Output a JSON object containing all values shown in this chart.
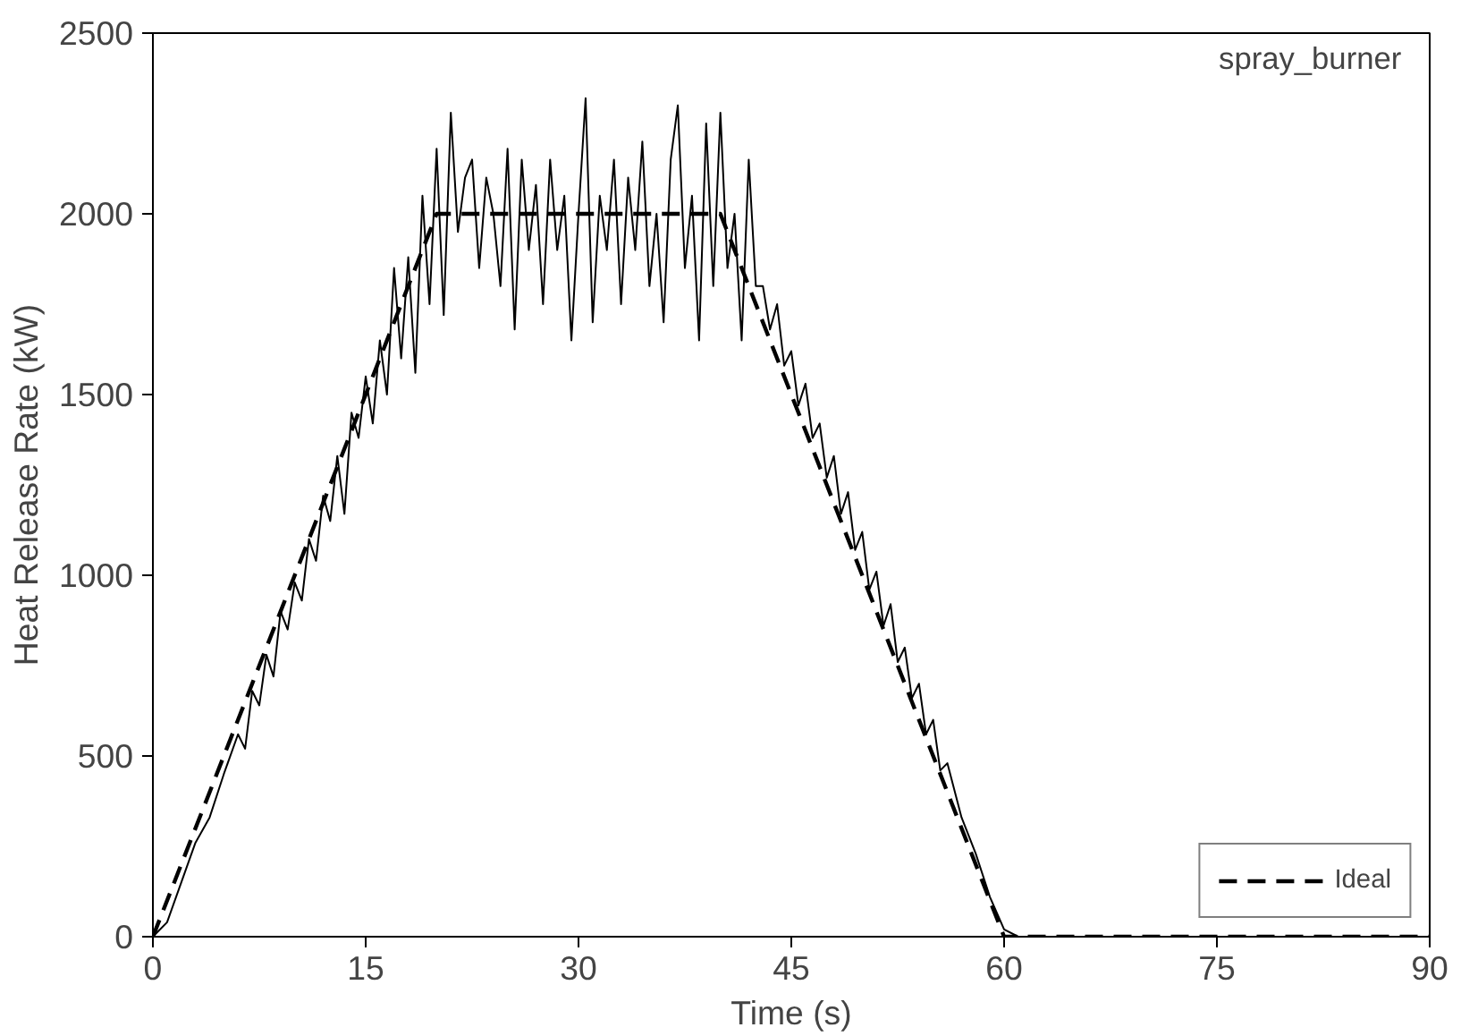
{
  "chart_data": {
    "type": "line",
    "xlabel": "Time (s)",
    "ylabel": "Heat Release Rate (kW)",
    "annotations": [
      "spray_burner"
    ],
    "xlim": [
      0,
      90
    ],
    "xticks": [
      0,
      15,
      30,
      45,
      60,
      75,
      90
    ],
    "ylim": [
      0,
      2500
    ],
    "yticks": [
      0,
      500,
      1000,
      1500,
      2000,
      2500
    ],
    "grid": false,
    "legend": "bottom right",
    "series": [
      {
        "color": "#000000",
        "line_style": "solid",
        "x": [
          0,
          1,
          2,
          3,
          4,
          5,
          6,
          6.5,
          7,
          7.5,
          8,
          8.5,
          9,
          9.5,
          10,
          10.5,
          11,
          11.5,
          12,
          12.5,
          13,
          13.5,
          14,
          14.5,
          15,
          15.5,
          16,
          16.5,
          17,
          17.5,
          18,
          18.5,
          19,
          19.5,
          20,
          20.5,
          21,
          21.5,
          22,
          22.5,
          23,
          23.5,
          24,
          24.5,
          25,
          25.5,
          26,
          26.5,
          27,
          27.5,
          28,
          28.5,
          29,
          29.5,
          30,
          30.5,
          31,
          31.5,
          32,
          32.5,
          33,
          33.5,
          34,
          34.5,
          35,
          35.5,
          36,
          36.5,
          37,
          37.5,
          38,
          38.5,
          39,
          39.5,
          40,
          40.5,
          41,
          41.5,
          42,
          42.5,
          43,
          43.5,
          44,
          44.5,
          45,
          45.5,
          46,
          46.5,
          47,
          47.5,
          48,
          48.5,
          49,
          49.5,
          50,
          50.5,
          51,
          51.5,
          52,
          52.5,
          53,
          53.5,
          54,
          54.5,
          55,
          55.5,
          56,
          57,
          58,
          59,
          60,
          61,
          90
        ],
        "values": [
          0,
          40,
          150,
          260,
          330,
          450,
          560,
          520,
          680,
          640,
          780,
          720,
          900,
          850,
          980,
          930,
          1100,
          1040,
          1220,
          1150,
          1330,
          1170,
          1450,
          1380,
          1550,
          1420,
          1650,
          1500,
          1850,
          1600,
          1880,
          1560,
          2050,
          1750,
          2180,
          1720,
          2280,
          1950,
          2100,
          2150,
          1850,
          2100,
          2000,
          1800,
          2180,
          1680,
          2150,
          1900,
          2080,
          1750,
          2150,
          1900,
          2050,
          1650,
          2000,
          2320,
          1700,
          2050,
          1900,
          2150,
          1750,
          2100,
          1900,
          2200,
          1800,
          2000,
          1700,
          2150,
          2300,
          1850,
          2050,
          1650,
          2250,
          1800,
          2280,
          1850,
          2000,
          1650,
          2150,
          1800,
          1800,
          1680,
          1750,
          1580,
          1620,
          1470,
          1530,
          1380,
          1420,
          1270,
          1330,
          1170,
          1230,
          1070,
          1120,
          960,
          1010,
          860,
          920,
          760,
          800,
          660,
          700,
          560,
          600,
          460,
          480,
          330,
          230,
          110,
          20,
          0,
          0
        ]
      },
      {
        "name": "Ideal",
        "color": "#000000",
        "line_style": "dashed",
        "x": [
          0,
          20,
          40,
          60,
          90
        ],
        "values": [
          0,
          2000,
          2000,
          0,
          0
        ]
      }
    ]
  }
}
